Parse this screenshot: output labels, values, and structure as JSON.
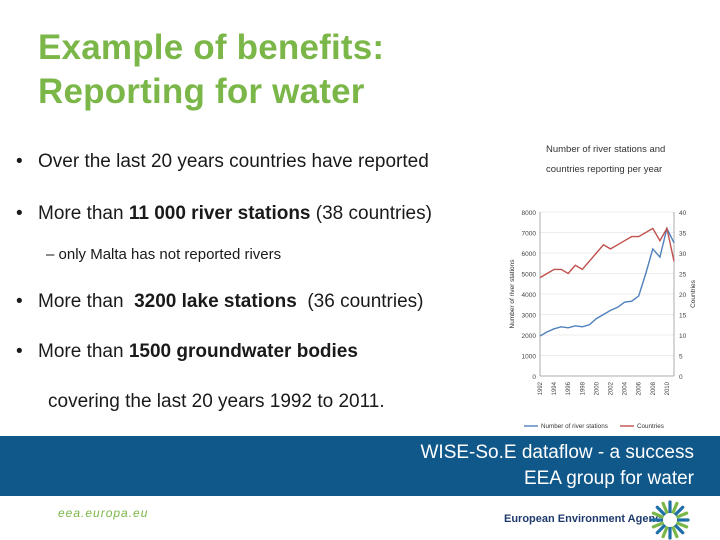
{
  "slide": {
    "title_line1": "Example of benefits:",
    "title_line2": "Reporting for water",
    "bullets": [
      {
        "text": "Over the last 20 years countries have reported"
      },
      {
        "prefix": "More than ",
        "bold": "11 000 river stations",
        "suffix": " (38 countries)"
      },
      {
        "prefix": "More than  ",
        "bold": "3200 lake stations",
        "suffix": "  (36 countries)"
      },
      {
        "prefix": "More than ",
        "bold": "1500 groundwater bodies",
        "suffix": ""
      }
    ],
    "bullet_symbol": "•",
    "sub_bullet": "– only Malta has not reported rivers",
    "covering": "covering the last 20 years 1992 to 2011."
  },
  "banner": {
    "line1": "WISE-So.E dataflow  - a success",
    "line2": "EEA group for water"
  },
  "footer": {
    "url": "eea.europa.eu",
    "agency": "European Environment Agency"
  },
  "colors": {
    "title": "#7ab648",
    "banner": "#10578a",
    "stations_line": "#4f81bd",
    "countries_line": "#c0504d"
  },
  "chart_data": {
    "type": "line",
    "title": "Number of river stations and countries reporting per year",
    "ylabel": "Number of river stations",
    "y2label": "Countries",
    "ylim": [
      0,
      8000
    ],
    "y2lim": [
      0,
      40
    ],
    "yticks": [
      "0",
      "1000",
      "2000",
      "3000",
      "4000",
      "5000",
      "6000",
      "7000",
      "8000"
    ],
    "y2ticks": [
      "0",
      "5",
      "10",
      "15",
      "20",
      "25",
      "30",
      "35",
      "40"
    ],
    "x": [
      1992,
      1993,
      1994,
      1995,
      1996,
      1997,
      1998,
      1999,
      2000,
      2001,
      2002,
      2003,
      2004,
      2005,
      2006,
      2007,
      2008,
      2009,
      2010,
      2011
    ],
    "xticks": [
      "1992",
      "1994",
      "1996",
      "1998",
      "2000",
      "2002",
      "2004",
      "2006",
      "2008",
      "2010"
    ],
    "series": [
      {
        "name": "Number of river stations",
        "axis": "left",
        "values": [
          1950,
          2150,
          2300,
          2400,
          2350,
          2450,
          2400,
          2500,
          2800,
          3000,
          3200,
          3350,
          3600,
          3650,
          3900,
          5000,
          6200,
          5800,
          7200,
          6500
        ]
      },
      {
        "name": "Countries",
        "axis": "right",
        "values": [
          24,
          25,
          26,
          26,
          25,
          27,
          26,
          28,
          30,
          32,
          31,
          32,
          33,
          34,
          34,
          35,
          36,
          33,
          36,
          28
        ]
      }
    ],
    "legend": "bottom"
  }
}
